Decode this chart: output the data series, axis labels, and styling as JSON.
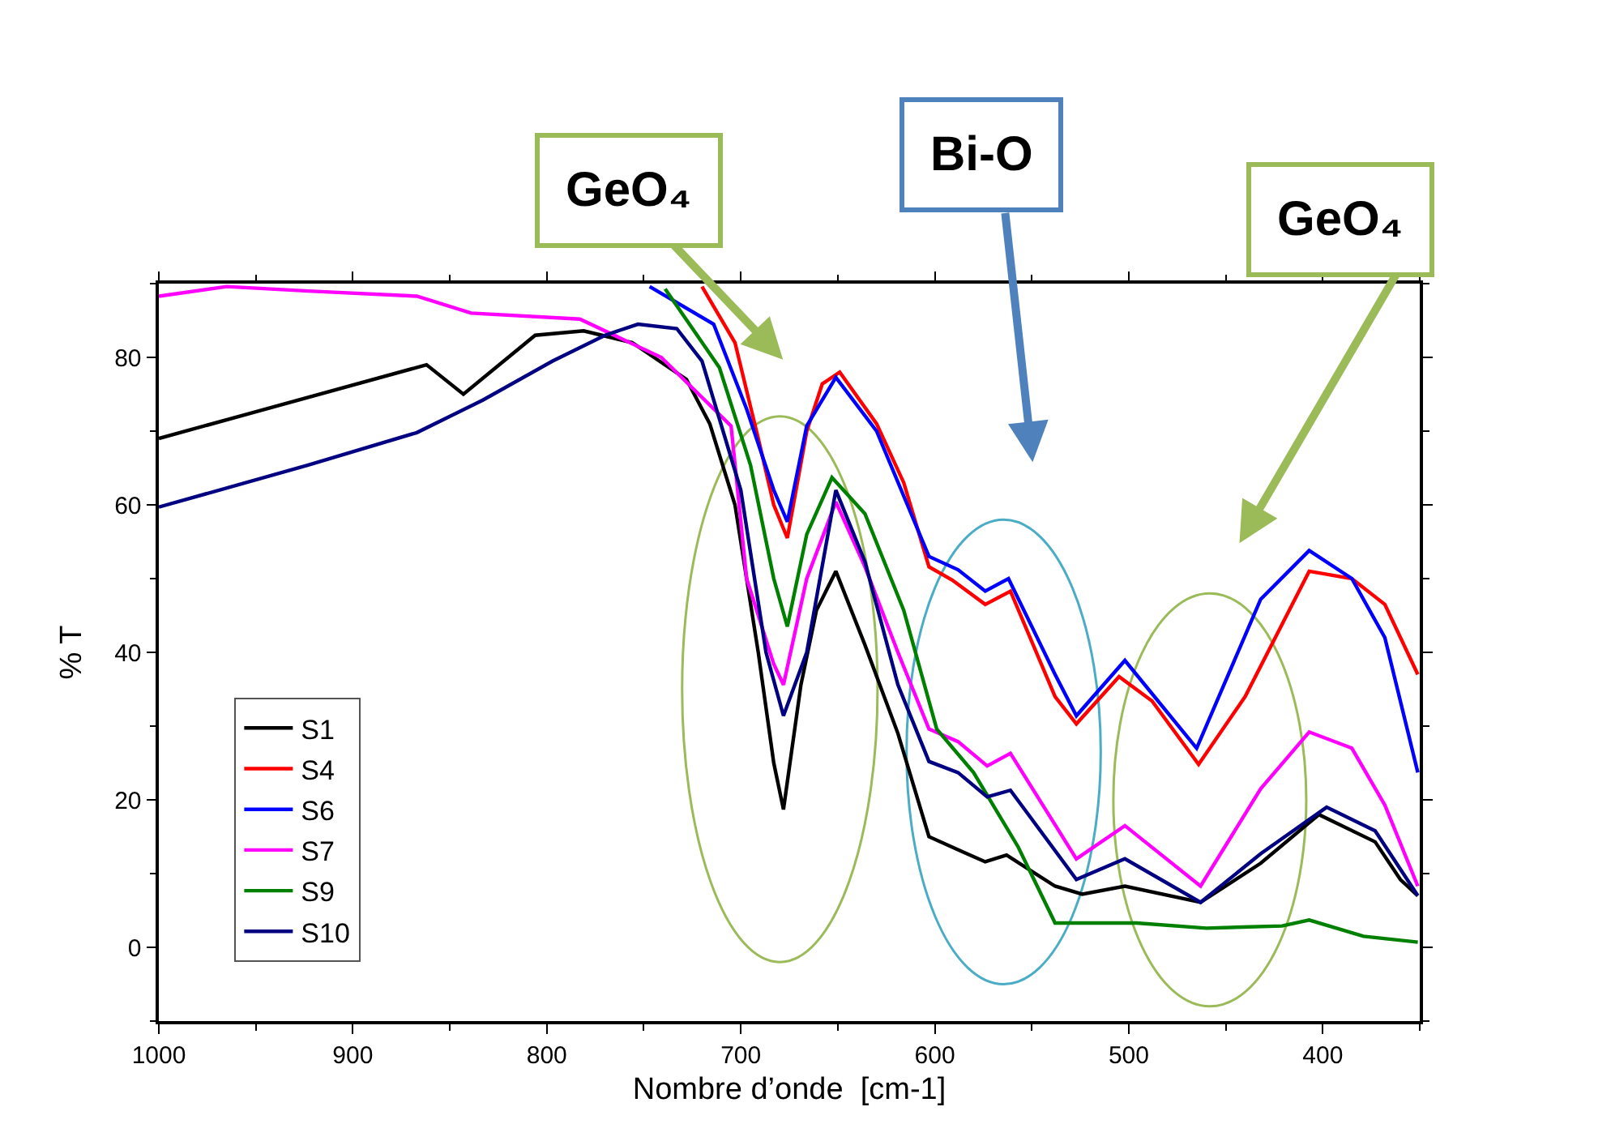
{
  "chart_data": {
    "type": "line",
    "xlabel": "Nombre d’onde  [cm-1]",
    "ylabel": "% T",
    "xlim": [
      1000,
      350
    ],
    "xticks": [
      1000,
      900,
      800,
      700,
      600,
      500,
      400
    ],
    "ylim": [
      -10,
      90
    ],
    "yticks": [
      0,
      20,
      40,
      60,
      80
    ],
    "grid": false,
    "legend": "bottom left",
    "marker": "none",
    "line_style": "solid",
    "series": [
      {
        "name": "S1",
        "color": "#000000",
        "x": [
          1000,
          862,
          843,
          806,
          781,
          756,
          728,
          716,
          703,
          691,
          683,
          678,
          669,
          661,
          651,
          636,
          619,
          603,
          586,
          574,
          563,
          538,
          524,
          502,
          463,
          432,
          402,
          373,
          360,
          351
        ],
        "values": [
          69,
          79,
          75,
          83,
          83.6,
          82,
          77,
          71,
          60,
          40,
          25,
          18.7,
          35.6,
          45.7,
          51,
          41,
          29,
          15,
          13,
          11.6,
          12.5,
          8.3,
          7.2,
          8.3,
          6.1,
          11.4,
          18,
          14.3,
          9.2,
          7
        ]
      },
      {
        "name": "S4",
        "color": "#ff0000",
        "x": [
          720,
          703,
          691,
          683,
          676,
          666,
          658,
          649,
          630,
          616,
          603,
          591,
          574,
          561,
          538,
          527,
          505,
          488,
          464,
          440,
          407,
          385,
          368,
          351
        ],
        "values": [
          89.6,
          82,
          69,
          60,
          55.5,
          70,
          76.4,
          78,
          71,
          63,
          51.6,
          49.8,
          46.5,
          48.3,
          34,
          30.3,
          36.7,
          33.4,
          24.8,
          34,
          51,
          50,
          46.5,
          37
        ]
      },
      {
        "name": "S6",
        "color": "#0000ff",
        "x": [
          747,
          714,
          697,
          683,
          676,
          666,
          651,
          630,
          603,
          588,
          574,
          562,
          538,
          527,
          502,
          465,
          432,
          407,
          385,
          368,
          351
        ],
        "values": [
          89.6,
          84.5,
          73,
          62,
          57.7,
          70.7,
          77.3,
          70,
          53,
          51.2,
          48.3,
          50,
          37,
          31.4,
          38.9,
          27,
          47.2,
          53.8,
          50,
          42,
          23.7
        ]
      },
      {
        "name": "S7",
        "color": "#ff00ff",
        "x": [
          1000,
          965,
          923,
          867,
          839,
          783,
          741,
          705,
          697,
          683,
          678,
          666,
          651,
          636,
          619,
          603,
          588,
          573,
          561,
          527,
          502,
          463,
          432,
          407,
          385,
          368,
          351
        ],
        "values": [
          88.3,
          89.6,
          89,
          88.3,
          86,
          85.2,
          80,
          70.7,
          50,
          38.4,
          35.6,
          50,
          60.4,
          51.6,
          40,
          29.6,
          27.9,
          24.6,
          26.3,
          12,
          16.5,
          8.3,
          21.5,
          29.2,
          27,
          19.3,
          8.3
        ]
      },
      {
        "name": "S9",
        "color": "#008000",
        "x": [
          739,
          711,
          695,
          683,
          676,
          666,
          653,
          636,
          616,
          599,
          580,
          557,
          538,
          496,
          460,
          421,
          407,
          379,
          351
        ],
        "values": [
          89.3,
          78.6,
          65.4,
          50,
          43.5,
          56,
          63.7,
          58.8,
          45.7,
          29.6,
          23.7,
          13.6,
          3.3,
          3.3,
          2.6,
          2.9,
          3.7,
          1.5,
          0.7
        ]
      },
      {
        "name": "S10",
        "color": "#000080",
        "x": [
          1000,
          923,
          867,
          833,
          797,
          770,
          753,
          733,
          720,
          700,
          687,
          678,
          666,
          651,
          636,
          619,
          603,
          588,
          573,
          561,
          527,
          502,
          463,
          432,
          398,
          373,
          351
        ],
        "values": [
          59.7,
          65.4,
          69.8,
          74.2,
          79.5,
          83,
          84.5,
          83.9,
          79.5,
          62,
          40,
          31.4,
          40,
          62,
          52.3,
          35.6,
          25.2,
          23.7,
          20.4,
          21.3,
          9.2,
          12,
          6.1,
          12.7,
          19,
          15.8,
          7
        ]
      }
    ],
    "annotations": [
      "GeO₄",
      "Bi-O",
      "GeO₄"
    ]
  }
}
